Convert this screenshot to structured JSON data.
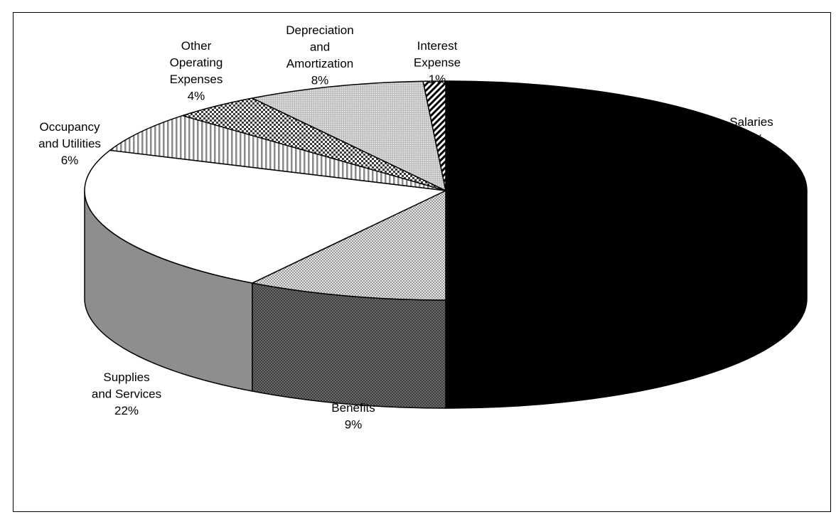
{
  "chart_data": {
    "type": "pie",
    "style": "3d",
    "pattern_fills": true,
    "categories": [
      "Salaries",
      "Benefits",
      "Supplies and Services",
      "Occupancy and Utilities",
      "Other Operating Expenses",
      "Depreciation and Amortization",
      "Interest Expense"
    ],
    "values": [
      50,
      9,
      22,
      6,
      4,
      8,
      1
    ],
    "labels": [
      {
        "lines": [
          "Salaries"
        ],
        "pct": "50%"
      },
      {
        "lines": [
          "Benefits"
        ],
        "pct": "9%"
      },
      {
        "lines": [
          "Supplies",
          "and Services"
        ],
        "pct": "22%"
      },
      {
        "lines": [
          "Occupancy",
          "and Utilities"
        ],
        "pct": "6%"
      },
      {
        "lines": [
          "Other",
          "Operating",
          "Expenses"
        ],
        "pct": "4%"
      },
      {
        "lines": [
          "Depreciation",
          "and",
          "Amortization"
        ],
        "pct": "8%"
      },
      {
        "lines": [
          "Interest",
          "Expense"
        ],
        "pct": "1%"
      }
    ],
    "fill_names": [
      "solid-black",
      "light-dots",
      "white",
      "vertical-stripes",
      "checker",
      "fine-dots",
      "diagonal-stripes"
    ],
    "side_colors": [
      "#000000",
      "#555555",
      "#8e8e8e"
    ],
    "legend": "none"
  }
}
